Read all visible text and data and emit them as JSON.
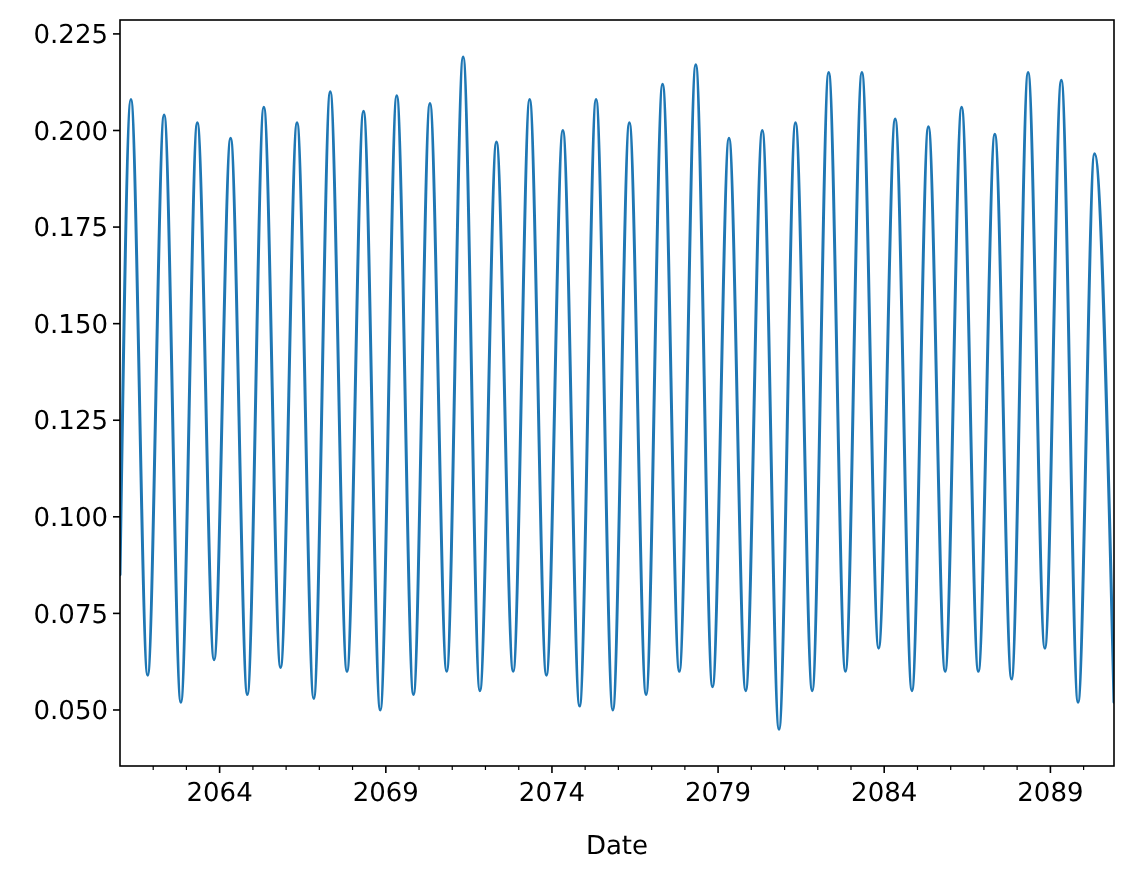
{
  "chart_data": {
    "type": "line",
    "xlabel": "Date",
    "xlim": [
      "2061-01",
      "2090-12"
    ],
    "xticks": [
      {
        "value": "2062",
        "label": null
      },
      {
        "value": "2063",
        "label": null
      },
      {
        "value": "2064",
        "label": "2064"
      },
      {
        "value": "2065",
        "label": null
      },
      {
        "value": "2066",
        "label": null
      },
      {
        "value": "2067",
        "label": null
      },
      {
        "value": "2068",
        "label": null
      },
      {
        "value": "2069",
        "label": "2069"
      },
      {
        "value": "2070",
        "label": null
      },
      {
        "value": "2071",
        "label": null
      },
      {
        "value": "2072",
        "label": null
      },
      {
        "value": "2073",
        "label": null
      },
      {
        "value": "2074",
        "label": "2074"
      },
      {
        "value": "2075",
        "label": null
      },
      {
        "value": "2076",
        "label": null
      },
      {
        "value": "2077",
        "label": null
      },
      {
        "value": "2078",
        "label": null
      },
      {
        "value": "2079",
        "label": "2079"
      },
      {
        "value": "2080",
        "label": null
      },
      {
        "value": "2081",
        "label": null
      },
      {
        "value": "2082",
        "label": null
      },
      {
        "value": "2083",
        "label": null
      },
      {
        "value": "2084",
        "label": "2084"
      },
      {
        "value": "2085",
        "label": null
      },
      {
        "value": "2086",
        "label": null
      },
      {
        "value": "2087",
        "label": null
      },
      {
        "value": "2088",
        "label": null
      },
      {
        "value": "2089",
        "label": "2089"
      },
      {
        "value": "2090",
        "label": null
      }
    ],
    "ylim": [
      0.0355,
      0.2286
    ],
    "yticks": [
      {
        "value": 0.05,
        "label": "0.050"
      },
      0.075,
      {
        "value": 0.1,
        "label": "0.100"
      },
      0.125,
      {
        "value": 0.15,
        "label": "0.150"
      },
      0.175,
      {
        "value": 0.2,
        "label": "0.200"
      },
      0.225
    ],
    "series": [
      {
        "color": "#1f77b4",
        "x": [
          "2061-01",
          "2061-05",
          "2061-11",
          "2062-05",
          "2062-11",
          "2063-05",
          "2063-11",
          "2064-05",
          "2064-11",
          "2065-05",
          "2065-11",
          "2066-05",
          "2066-11",
          "2067-05",
          "2067-11",
          "2068-05",
          "2068-11",
          "2069-05",
          "2069-11",
          "2070-05",
          "2070-11",
          "2071-05",
          "2071-11",
          "2072-05",
          "2072-11",
          "2073-05",
          "2073-11",
          "2074-05",
          "2074-11",
          "2075-05",
          "2075-11",
          "2076-05",
          "2076-11",
          "2077-05",
          "2077-11",
          "2078-05",
          "2078-11",
          "2079-05",
          "2079-11",
          "2080-05",
          "2080-11",
          "2081-05",
          "2081-11",
          "2082-05",
          "2082-11",
          "2083-05",
          "2083-11",
          "2084-05",
          "2084-11",
          "2085-05",
          "2085-11",
          "2086-05",
          "2086-11",
          "2087-05",
          "2087-11",
          "2088-05",
          "2088-11",
          "2089-05",
          "2089-11",
          "2090-05",
          "2090-12"
        ],
        "values": [
          0.085,
          0.208,
          0.059,
          0.204,
          0.052,
          0.202,
          0.063,
          0.198,
          0.054,
          0.206,
          0.061,
          0.202,
          0.053,
          0.21,
          0.06,
          0.205,
          0.05,
          0.209,
          0.054,
          0.207,
          0.06,
          0.219,
          0.055,
          0.197,
          0.06,
          0.208,
          0.059,
          0.2,
          0.051,
          0.208,
          0.05,
          0.202,
          0.054,
          0.212,
          0.06,
          0.217,
          0.056,
          0.198,
          0.055,
          0.2,
          0.045,
          0.202,
          0.055,
          0.215,
          0.06,
          0.215,
          0.066,
          0.203,
          0.055,
          0.201,
          0.06,
          0.206,
          0.06,
          0.199,
          0.058,
          0.215,
          0.066,
          0.213,
          0.052,
          0.194,
          0.052
        ]
      }
    ]
  }
}
